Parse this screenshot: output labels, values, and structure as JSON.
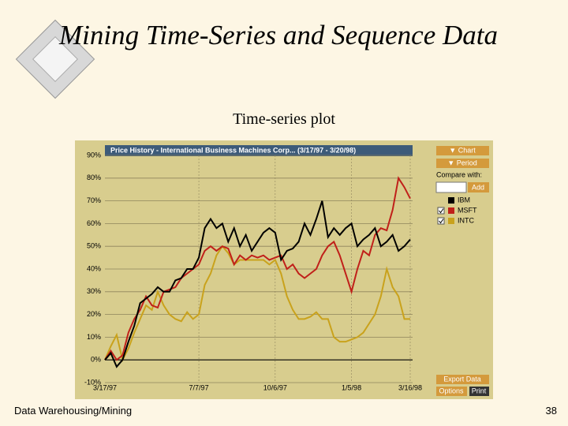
{
  "slide": {
    "title": "Mining Time-Series and Sequence Data",
    "subtitle": "Time-series plot",
    "footer": "Data Warehousing/Mining",
    "page": "38"
  },
  "panel": {
    "chart_button": "▼ Chart",
    "period_button": "▼ Period",
    "compare_label": "Compare with:",
    "add_button": "Add",
    "export_button": "Export Data",
    "options_button": "Options",
    "print_button": "Print"
  },
  "chart_data": {
    "type": "line",
    "title": "Price History - International Business Machines Corp... (3/17/97 - 3/20/98)",
    "categories": [
      "3/17/97",
      null,
      null,
      null,
      null,
      null,
      null,
      null,
      null,
      null,
      null,
      null,
      null,
      null,
      null,
      null,
      "7/7/97",
      null,
      null,
      null,
      null,
      null,
      null,
      null,
      null,
      null,
      null,
      null,
      null,
      "10/6/97",
      null,
      null,
      null,
      null,
      null,
      null,
      null,
      null,
      null,
      null,
      null,
      null,
      "1/5/98",
      null,
      null,
      null,
      null,
      null,
      null,
      null,
      null,
      null,
      "3/16/98"
    ],
    "series": [
      {
        "name": "IBM",
        "color": "#000000",
        "values": [
          0,
          3,
          -3,
          0,
          8,
          15,
          25,
          27,
          29,
          32,
          30,
          30,
          35,
          36,
          40,
          40,
          45,
          58,
          62,
          58,
          60,
          52,
          58,
          50,
          55,
          48,
          52,
          56,
          58,
          56,
          44,
          48,
          49,
          52,
          60,
          55,
          62,
          70,
          54,
          58,
          55,
          58,
          60,
          50,
          53,
          55,
          58,
          50,
          52,
          55,
          48,
          50,
          53
        ]
      },
      {
        "name": "MSFT",
        "color": "#c0201a",
        "values": [
          0,
          4,
          0,
          2,
          12,
          18,
          22,
          28,
          24,
          23,
          30,
          31,
          32,
          36,
          38,
          40,
          42,
          48,
          50,
          48,
          50,
          49,
          42,
          46,
          44,
          46,
          45,
          46,
          44,
          45,
          46,
          40,
          42,
          38,
          36,
          38,
          40,
          46,
          50,
          52,
          46,
          38,
          30,
          40,
          48,
          46,
          55,
          58,
          57,
          66,
          80,
          76,
          71
        ]
      },
      {
        "name": "INTC",
        "color": "#c9a21c",
        "values": [
          0,
          6,
          11,
          0,
          5,
          12,
          18,
          24,
          22,
          30,
          24,
          20,
          18,
          17,
          21,
          18,
          20,
          33,
          38,
          46,
          50,
          47,
          42,
          44,
          44,
          44,
          44,
          44,
          42,
          44,
          38,
          28,
          22,
          18,
          18,
          19,
          21,
          18,
          18,
          10,
          8,
          8,
          9,
          10,
          12,
          16,
          20,
          28,
          40,
          32,
          28,
          18,
          18
        ]
      }
    ],
    "ylim": [
      -10,
      90
    ],
    "yticks": [
      {
        "value": -10,
        "label": "-10%"
      },
      {
        "value": 0,
        "label": "0%"
      },
      {
        "value": 10,
        "label": "10%"
      },
      {
        "value": 20,
        "label": "20%"
      },
      {
        "value": 30,
        "label": "30%"
      },
      {
        "value": 40,
        "label": "40%"
      },
      {
        "value": 50,
        "label": "50%"
      },
      {
        "value": 60,
        "label": "60%"
      },
      {
        "value": 70,
        "label": "70%"
      },
      {
        "value": 80,
        "label": "80%"
      },
      {
        "value": 90,
        "label": "90%"
      }
    ],
    "grid": true
  }
}
